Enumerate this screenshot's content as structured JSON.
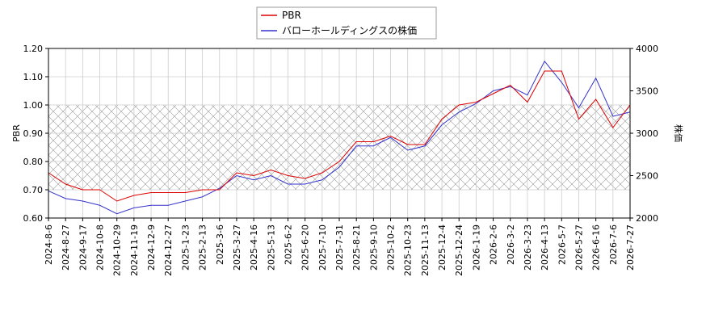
{
  "chart_data": {
    "type": "line",
    "categories": [
      "2024-8-6",
      "2024-8-27",
      "2024-9-17",
      "2024-10-8",
      "2024-10-29",
      "2024-11-19",
      "2024-12-9",
      "2024-12-27",
      "2025-1-23",
      "2025-2-13",
      "2025-3-6",
      "2025-3-27",
      "2025-4-16",
      "2025-5-13",
      "2025-6-2",
      "2025-6-20",
      "2025-7-10",
      "2025-7-31",
      "2025-8-21",
      "2025-9-10",
      "2025-10-2",
      "2025-10-23",
      "2025-11-13",
      "2025-12-4",
      "2025-12-24",
      "2026-1-19",
      "2026-2-6",
      "2026-3-2",
      "2026-3-23",
      "2026-4-13",
      "2026-5-7",
      "2026-5-27",
      "2026-6-16",
      "2026-7-6",
      "2026-7-27"
    ],
    "series": [
      {
        "name": "PBR",
        "color": "#dd0000",
        "values": [
          0.76,
          0.72,
          0.7,
          0.7,
          0.66,
          0.68,
          0.69,
          0.69,
          0.69,
          0.7,
          0.7,
          0.76,
          0.75,
          0.77,
          0.75,
          0.74,
          0.76,
          0.8,
          0.87,
          0.87,
          0.89,
          0.86,
          0.86,
          0.95,
          1.0,
          1.01,
          1.04,
          1.07,
          1.01,
          1.12,
          1.12,
          0.95,
          1.02,
          0.92,
          1.0
        ]
      },
      {
        "name": "バローホールディングスの株価",
        "color": "#3333cc",
        "axis": "y2",
        "values": [
          2320,
          2230,
          2200,
          2150,
          2050,
          2120,
          2150,
          2150,
          2200,
          2250,
          2350,
          2500,
          2450,
          2500,
          2400,
          2400,
          2450,
          2600,
          2850,
          2850,
          2950,
          2800,
          2850,
          3100,
          3250,
          3350,
          3500,
          3550,
          3450,
          3850,
          3600,
          3300,
          3650,
          3200,
          3250
        ]
      }
    ],
    "ylabel": "PBR",
    "y2label": "株価",
    "ylim": [
      0.6,
      1.2
    ],
    "yticks": [
      {
        "value": 0.6,
        "label": "0.60"
      },
      {
        "value": 0.7,
        "label": "0.70"
      },
      {
        "value": 0.8,
        "label": "0.80"
      },
      {
        "value": 0.9,
        "label": "0.90"
      },
      {
        "value": 1.0,
        "label": "1.00"
      },
      {
        "value": 1.1,
        "label": "1.10"
      },
      {
        "value": 1.2,
        "label": "1.20"
      }
    ],
    "y2lim": [
      2000,
      4000
    ],
    "y2ticks": [
      2000,
      2500,
      3000,
      3500,
      4000
    ],
    "band": [
      0.7,
      1.0
    ],
    "grid": true,
    "legend": "top"
  }
}
